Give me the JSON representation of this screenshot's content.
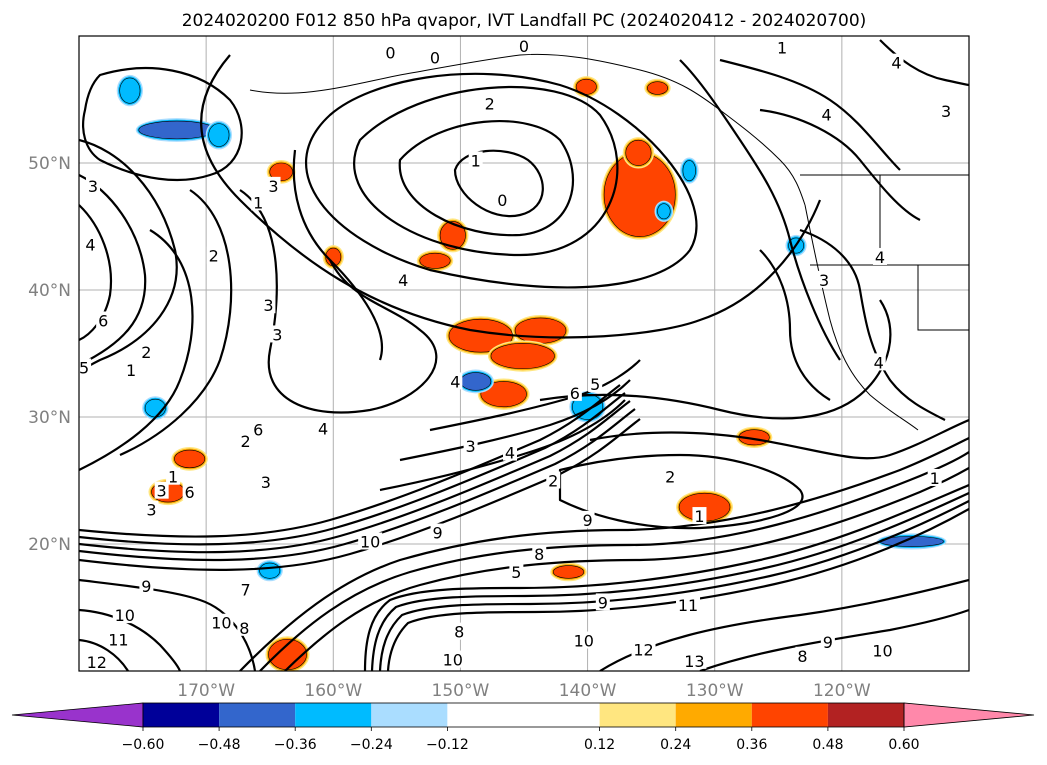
{
  "title": "2024020200 F012 850 hPa qvapor, IVT Landfall PC (2024020412 - 2024020700)",
  "chart_data": {
    "type": "heatmap",
    "title": "2024020200 F012 850 hPa qvapor, IVT Landfall PC (2024020412 - 2024020700)",
    "projection": "lat-lon map, North Pacific",
    "lon_range": [
      -180,
      -110
    ],
    "lat_range": [
      10,
      60
    ],
    "grid": true,
    "lon_ticks": [
      "170°W",
      "160°W",
      "150°W",
      "140°W",
      "130°W",
      "120°W"
    ],
    "lat_ticks": [
      "20°N",
      "30°N",
      "40°N",
      "50°N"
    ],
    "contour_field": "850 hPa qvapor (black contours)",
    "contour_labels": [
      {
        "value": "0",
        "lon": -155.5,
        "lat": 58.7
      },
      {
        "value": "0",
        "lon": -152.0,
        "lat": 58.3
      },
      {
        "value": "0",
        "lon": -145.0,
        "lat": 59.2
      },
      {
        "value": "1",
        "lon": -124.7,
        "lat": 59.1
      },
      {
        "value": "2",
        "lon": -147.7,
        "lat": 54.7
      },
      {
        "value": "1",
        "lon": -148.8,
        "lat": 50.2
      },
      {
        "value": "0",
        "lon": -146.7,
        "lat": 47.1
      },
      {
        "value": "4",
        "lon": -115.7,
        "lat": 57.9
      },
      {
        "value": "4",
        "lon": -121.2,
        "lat": 53.8
      },
      {
        "value": "3",
        "lon": -111.8,
        "lat": 54.1
      },
      {
        "value": "3",
        "lon": -178.9,
        "lat": 48.2
      },
      {
        "value": "3",
        "lon": -164.7,
        "lat": 48.2
      },
      {
        "value": "1",
        "lon": -165.9,
        "lat": 46.9
      },
      {
        "value": "4",
        "lon": -179.1,
        "lat": 43.6
      },
      {
        "value": "2",
        "lon": -169.4,
        "lat": 42.7
      },
      {
        "value": "4",
        "lon": -154.5,
        "lat": 40.8
      },
      {
        "value": "3",
        "lon": -121.4,
        "lat": 40.8
      },
      {
        "value": "4",
        "lon": -117.0,
        "lat": 42.6
      },
      {
        "value": "3",
        "lon": -165.1,
        "lat": 38.8
      },
      {
        "value": "6",
        "lon": -178.1,
        "lat": 37.6
      },
      {
        "value": "3",
        "lon": -164.4,
        "lat": 36.5
      },
      {
        "value": "2",
        "lon": -174.7,
        "lat": 35.1
      },
      {
        "value": "1",
        "lon": -175.9,
        "lat": 33.7
      },
      {
        "value": "5",
        "lon": -179.6,
        "lat": 33.9
      },
      {
        "value": "4",
        "lon": -150.4,
        "lat": 32.8
      },
      {
        "value": "6",
        "lon": -141.0,
        "lat": 31.9
      },
      {
        "value": "5",
        "lon": -139.4,
        "lat": 32.6
      },
      {
        "value": "4",
        "lon": -117.1,
        "lat": 34.3
      },
      {
        "value": "4",
        "lon": -160.8,
        "lat": 29.1
      },
      {
        "value": "6",
        "lon": -165.9,
        "lat": 29.0
      },
      {
        "value": "2",
        "lon": -166.9,
        "lat": 28.1
      },
      {
        "value": "3",
        "lon": -149.2,
        "lat": 27.7
      },
      {
        "value": "4",
        "lon": -146.1,
        "lat": 27.2
      },
      {
        "value": "2",
        "lon": -142.7,
        "lat": 25.0
      },
      {
        "value": "2",
        "lon": -133.5,
        "lat": 25.3
      },
      {
        "value": "1",
        "lon": -172.6,
        "lat": 25.3
      },
      {
        "value": "6",
        "lon": -171.3,
        "lat": 24.1
      },
      {
        "value": "3",
        "lon": -173.5,
        "lat": 24.2
      },
      {
        "value": "3",
        "lon": -165.3,
        "lat": 24.9
      },
      {
        "value": "1",
        "lon": -112.7,
        "lat": 25.2
      },
      {
        "value": "3",
        "lon": -174.3,
        "lat": 22.7
      },
      {
        "value": "1",
        "lon": -131.2,
        "lat": 22.2
      },
      {
        "value": "9",
        "lon": -140.0,
        "lat": 21.9
      },
      {
        "value": "9",
        "lon": -151.8,
        "lat": 20.9
      },
      {
        "value": "10",
        "lon": -157.1,
        "lat": 20.2
      },
      {
        "value": "8",
        "lon": -143.8,
        "lat": 19.2
      },
      {
        "value": "9",
        "lon": -174.7,
        "lat": 16.7
      },
      {
        "value": "5",
        "lon": -145.6,
        "lat": 17.8
      },
      {
        "value": "11",
        "lon": -132.1,
        "lat": 15.2
      },
      {
        "value": "9",
        "lon": -138.8,
        "lat": 15.4
      },
      {
        "value": "10",
        "lon": -176.4,
        "lat": 14.4
      },
      {
        "value": "10",
        "lon": -168.8,
        "lat": 13.8
      },
      {
        "value": "8",
        "lon": -167.0,
        "lat": 13.4
      },
      {
        "value": "11",
        "lon": -176.9,
        "lat": 12.5
      },
      {
        "value": "8",
        "lon": -150.1,
        "lat": 13.1
      },
      {
        "value": "10",
        "lon": -140.3,
        "lat": 12.4
      },
      {
        "value": "9",
        "lon": -121.1,
        "lat": 12.3
      },
      {
        "value": "12",
        "lon": -135.6,
        "lat": 11.7
      },
      {
        "value": "12",
        "lon": -178.6,
        "lat": 10.7
      },
      {
        "value": "10",
        "lon": -150.6,
        "lat": 10.9
      },
      {
        "value": "13",
        "lon": -131.6,
        "lat": 10.8
      },
      {
        "value": "8",
        "lon": -123.1,
        "lat": 11.2
      },
      {
        "value": "10",
        "lon": -116.8,
        "lat": 11.6
      },
      {
        "value": "7",
        "lon": -166.9,
        "lat": 16.4
      }
    ],
    "shading_field": "IVT Landfall PC (color fill)",
    "shading_regions": [
      {
        "lon": -135.9,
        "lat": 47.5,
        "rx": 2.8,
        "ry": 3.3,
        "value": 0.4
      },
      {
        "lon": -136.0,
        "lat": 50.8,
        "rx": 1.0,
        "ry": 1.0,
        "value": 0.4
      },
      {
        "lon": -140.1,
        "lat": 56.0,
        "rx": 0.8,
        "ry": 0.6,
        "value": 0.4
      },
      {
        "lon": -148.4,
        "lat": 36.4,
        "rx": 2.5,
        "ry": 1.3,
        "value": 0.42
      },
      {
        "lon": -143.7,
        "lat": 36.8,
        "rx": 2.0,
        "ry": 1.0,
        "value": 0.45
      },
      {
        "lon": -145.1,
        "lat": 34.8,
        "rx": 2.5,
        "ry": 1.0,
        "value": 0.38
      },
      {
        "lon": -146.6,
        "lat": 31.8,
        "rx": 1.8,
        "ry": 1.0,
        "value": 0.38
      },
      {
        "lon": -152.0,
        "lat": 42.3,
        "rx": 1.2,
        "ry": 0.6,
        "value": 0.38
      },
      {
        "lon": -150.6,
        "lat": 44.3,
        "rx": 1.0,
        "ry": 1.1,
        "value": 0.38
      },
      {
        "lon": -130.8,
        "lat": 22.9,
        "rx": 2.0,
        "ry": 1.1,
        "value": 0.44
      },
      {
        "lon": -171.3,
        "lat": 26.7,
        "rx": 1.2,
        "ry": 0.7,
        "value": 0.4
      },
      {
        "lon": -173.0,
        "lat": 24.1,
        "rx": 1.3,
        "ry": 0.8,
        "value": 0.44
      },
      {
        "lon": -163.6,
        "lat": 11.3,
        "rx": 1.5,
        "ry": 1.2,
        "value": 0.38
      },
      {
        "lon": -141.5,
        "lat": 17.8,
        "rx": 1.2,
        "ry": 0.5,
        "value": 0.38
      },
      {
        "lon": -164.1,
        "lat": 49.3,
        "rx": 0.9,
        "ry": 0.7,
        "value": 0.38
      },
      {
        "lon": -160.0,
        "lat": 42.6,
        "rx": 0.6,
        "ry": 0.7,
        "value": 0.38
      },
      {
        "lon": -126.9,
        "lat": 28.4,
        "rx": 1.2,
        "ry": 0.6,
        "value": 0.38
      },
      {
        "lon": -134.5,
        "lat": 55.9,
        "rx": 0.8,
        "ry": 0.5,
        "value": 0.38
      },
      {
        "lon": -172.3,
        "lat": 52.6,
        "rx": 3.0,
        "ry": 0.7,
        "value": -0.45
      },
      {
        "lon": -176.0,
        "lat": 55.7,
        "rx": 0.8,
        "ry": 1.0,
        "value": -0.35
      },
      {
        "lon": -148.8,
        "lat": 32.8,
        "rx": 1.2,
        "ry": 0.7,
        "value": -0.42
      },
      {
        "lon": -140.0,
        "lat": 30.8,
        "rx": 1.2,
        "ry": 1.0,
        "value": -0.35
      },
      {
        "lon": -114.5,
        "lat": 20.2,
        "rx": 2.5,
        "ry": 0.4,
        "value": -0.4
      },
      {
        "lon": -123.6,
        "lat": 43.5,
        "rx": 0.6,
        "ry": 0.6,
        "value": -0.3
      },
      {
        "lon": -169.0,
        "lat": 52.2,
        "rx": 0.8,
        "ry": 0.9,
        "value": -0.3
      },
      {
        "lon": -174.0,
        "lat": 30.7,
        "rx": 0.8,
        "ry": 0.7,
        "value": -0.28
      },
      {
        "lon": -132.0,
        "lat": 49.4,
        "rx": 0.5,
        "ry": 0.8,
        "value": -0.28
      },
      {
        "lon": -134.0,
        "lat": 46.2,
        "rx": 0.5,
        "ry": 0.6,
        "value": -0.25
      },
      {
        "lon": -165.0,
        "lat": 17.9,
        "rx": 0.8,
        "ry": 0.6,
        "value": -0.25
      }
    ],
    "colorbar": {
      "orientation": "horizontal",
      "extend": "both",
      "ticks": [
        "−0.60",
        "−0.48",
        "−0.36",
        "−0.24",
        "−0.12",
        "0.12",
        "0.24",
        "0.36",
        "0.48",
        "0.60"
      ],
      "levels": [
        -0.6,
        -0.48,
        -0.36,
        -0.24,
        -0.12,
        0.12,
        0.24,
        0.36,
        0.48,
        0.6
      ],
      "colors": [
        "#9933cc",
        "#000099",
        "#3366cc",
        "#00bbff",
        "#aaddff",
        "#ffffff",
        "#ffe680",
        "#ffaa00",
        "#ff4400",
        "#b22222",
        "#ff88aa"
      ]
    }
  }
}
